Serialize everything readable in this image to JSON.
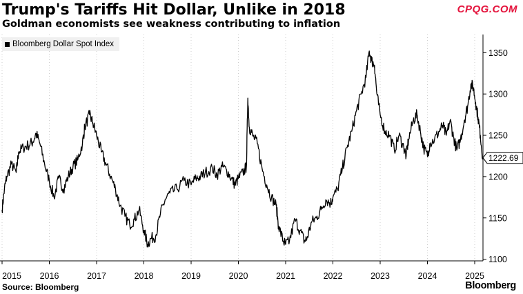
{
  "header": {
    "title": "Trump's Tariffs Hit Dollar, Unlike in 2018",
    "subtitle": "Goldman economists see weakness contributing to inflation",
    "watermark": "CPQG.COM"
  },
  "footer": {
    "source": "Source: Bloomberg",
    "brand": "Bloomberg"
  },
  "colors": {
    "line": "#000000",
    "grid": "#cccccc",
    "legend_bg": "#f0f0f0",
    "watermark": "#e4133c"
  },
  "chart_data": {
    "type": "line",
    "title": "Trump's Tariffs Hit Dollar, Unlike in 2018",
    "subtitle": "Goldman economists see weakness contributing to inflation",
    "xlabel": "",
    "ylabel": "",
    "x_ticks": [
      "2015",
      "2016",
      "2017",
      "2018",
      "2019",
      "2020",
      "2021",
      "2022",
      "2023",
      "2024",
      "2025"
    ],
    "y_ticks": [
      1100,
      1150,
      1200,
      1250,
      1300,
      1350
    ],
    "ylim": [
      1098,
      1372
    ],
    "xlim": [
      2015.0,
      2025.3
    ],
    "y_axis_side": "right",
    "grid": "vertical dotted at years",
    "legend": "top-left",
    "last_value_label": "1222.69",
    "series": [
      {
        "name": "Bloomberg Dollar Spot Index",
        "points": [
          [
            2015.0,
            1160
          ],
          [
            2015.05,
            1185
          ],
          [
            2015.1,
            1200
          ],
          [
            2015.2,
            1215
          ],
          [
            2015.3,
            1205
          ],
          [
            2015.35,
            1230
          ],
          [
            2015.45,
            1235
          ],
          [
            2015.55,
            1238
          ],
          [
            2015.65,
            1242
          ],
          [
            2015.72,
            1252
          ],
          [
            2015.8,
            1240
          ],
          [
            2015.9,
            1215
          ],
          [
            2016.0,
            1195
          ],
          [
            2016.1,
            1175
          ],
          [
            2016.2,
            1198
          ],
          [
            2016.3,
            1185
          ],
          [
            2016.4,
            1200
          ],
          [
            2016.5,
            1212
          ],
          [
            2016.6,
            1220
          ],
          [
            2016.7,
            1240
          ],
          [
            2016.75,
            1260
          ],
          [
            2016.85,
            1275
          ],
          [
            2016.92,
            1265
          ],
          [
            2017.0,
            1250
          ],
          [
            2017.1,
            1230
          ],
          [
            2017.2,
            1215
          ],
          [
            2017.3,
            1200
          ],
          [
            2017.4,
            1185
          ],
          [
            2017.5,
            1165
          ],
          [
            2017.6,
            1152
          ],
          [
            2017.7,
            1142
          ],
          [
            2017.8,
            1148
          ],
          [
            2017.9,
            1160
          ],
          [
            2018.0,
            1135
          ],
          [
            2018.08,
            1118
          ],
          [
            2018.15,
            1125
          ],
          [
            2018.25,
            1128
          ],
          [
            2018.35,
            1155
          ],
          [
            2018.45,
            1172
          ],
          [
            2018.55,
            1180
          ],
          [
            2018.7,
            1185
          ],
          [
            2018.85,
            1195
          ],
          [
            2019.0,
            1190
          ],
          [
            2019.1,
            1198
          ],
          [
            2019.2,
            1200
          ],
          [
            2019.3,
            1205
          ],
          [
            2019.45,
            1210
          ],
          [
            2019.55,
            1202
          ],
          [
            2019.65,
            1212
          ],
          [
            2019.75,
            1208
          ],
          [
            2019.85,
            1198
          ],
          [
            2019.93,
            1190
          ],
          [
            2020.0,
            1198
          ],
          [
            2020.1,
            1205
          ],
          [
            2020.17,
            1212
          ],
          [
            2020.2,
            1295
          ],
          [
            2020.23,
            1260
          ],
          [
            2020.3,
            1250
          ],
          [
            2020.4,
            1240
          ],
          [
            2020.5,
            1210
          ],
          [
            2020.6,
            1190
          ],
          [
            2020.7,
            1175
          ],
          [
            2020.8,
            1165
          ],
          [
            2020.85,
            1140
          ],
          [
            2020.95,
            1122
          ],
          [
            2021.0,
            1118
          ],
          [
            2021.08,
            1122
          ],
          [
            2021.2,
            1148
          ],
          [
            2021.3,
            1135
          ],
          [
            2021.4,
            1122
          ],
          [
            2021.45,
            1125
          ],
          [
            2021.55,
            1145
          ],
          [
            2021.65,
            1150
          ],
          [
            2021.75,
            1160
          ],
          [
            2021.85,
            1172
          ],
          [
            2021.95,
            1168
          ],
          [
            2022.0,
            1175
          ],
          [
            2022.1,
            1185
          ],
          [
            2022.2,
            1210
          ],
          [
            2022.3,
            1235
          ],
          [
            2022.4,
            1255
          ],
          [
            2022.5,
            1280
          ],
          [
            2022.6,
            1300
          ],
          [
            2022.7,
            1320
          ],
          [
            2022.77,
            1352
          ],
          [
            2022.82,
            1340
          ],
          [
            2022.88,
            1335
          ],
          [
            2022.93,
            1300
          ],
          [
            2023.0,
            1275
          ],
          [
            2023.1,
            1255
          ],
          [
            2023.2,
            1250
          ],
          [
            2023.3,
            1232
          ],
          [
            2023.4,
            1250
          ],
          [
            2023.5,
            1235
          ],
          [
            2023.55,
            1225
          ],
          [
            2023.6,
            1245
          ],
          [
            2023.7,
            1268
          ],
          [
            2023.78,
            1275
          ],
          [
            2023.85,
            1255
          ],
          [
            2023.92,
            1235
          ],
          [
            2024.0,
            1225
          ],
          [
            2024.05,
            1240
          ],
          [
            2024.15,
            1245
          ],
          [
            2024.25,
            1255
          ],
          [
            2024.32,
            1262
          ],
          [
            2024.4,
            1250
          ],
          [
            2024.48,
            1268
          ],
          [
            2024.55,
            1248
          ],
          [
            2024.62,
            1232
          ],
          [
            2024.7,
            1245
          ],
          [
            2024.78,
            1268
          ],
          [
            2024.85,
            1285
          ],
          [
            2024.92,
            1312
          ],
          [
            2024.97,
            1308
          ],
          [
            2025.02,
            1290
          ],
          [
            2025.07,
            1272
          ],
          [
            2025.12,
            1250
          ],
          [
            2025.17,
            1222.69
          ]
        ]
      }
    ]
  }
}
